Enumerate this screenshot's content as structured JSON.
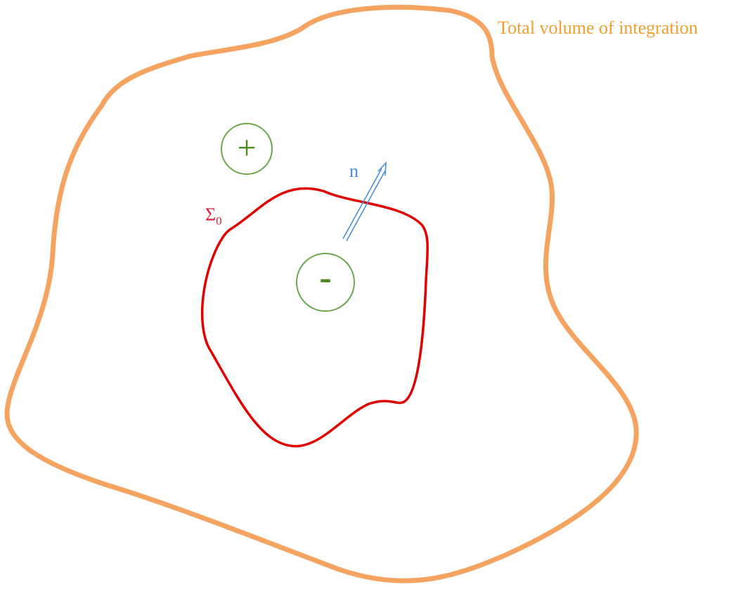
{
  "labels": {
    "volume": "Total volume of integration",
    "surface": "Σ",
    "surface_sub": "0",
    "normal": "n",
    "plus": "+",
    "minus": "-"
  }
}
